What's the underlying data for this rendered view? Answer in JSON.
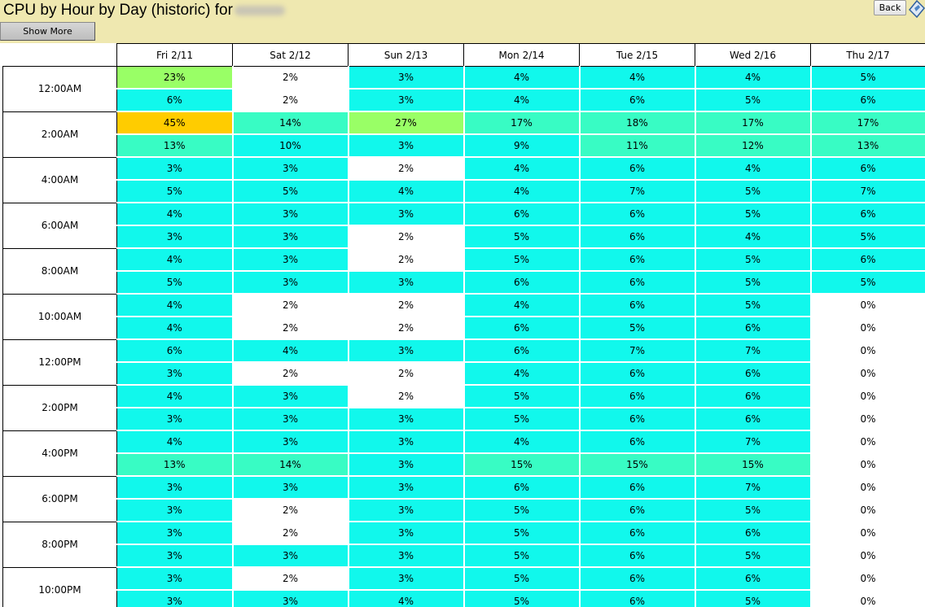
{
  "header": {
    "title": "CPU by Hour by Day (historic) for",
    "show_more_label": "Show More",
    "back_label": "Back"
  },
  "colors": {
    "background": "#efe8b0",
    "level_0_white": "#ffffff",
    "level_1_cyan": "#11f8ec",
    "level_2_aqua": "#38fcc4",
    "level_3_green": "#99ff66",
    "level_4_orange": "#ffcc00"
  },
  "table": {
    "columns": [
      "Fri 2/11",
      "Sat 2/12",
      "Sun 2/13",
      "Mon 2/14",
      "Tue 2/15",
      "Wed 2/16",
      "Thu 2/17"
    ],
    "groups": [
      {
        "hour": "12:00AM",
        "rows": [
          [
            {
              "v": "23%",
              "l": 3
            },
            {
              "v": "2%",
              "l": 0
            },
            {
              "v": "3%",
              "l": 1
            },
            {
              "v": "4%",
              "l": 1
            },
            {
              "v": "4%",
              "l": 1
            },
            {
              "v": "4%",
              "l": 1
            },
            {
              "v": "5%",
              "l": 1
            }
          ],
          [
            {
              "v": "6%",
              "l": 1
            },
            {
              "v": "2%",
              "l": 0
            },
            {
              "v": "3%",
              "l": 1
            },
            {
              "v": "4%",
              "l": 1
            },
            {
              "v": "6%",
              "l": 1
            },
            {
              "v": "5%",
              "l": 1
            },
            {
              "v": "6%",
              "l": 1
            }
          ]
        ]
      },
      {
        "hour": "2:00AM",
        "rows": [
          [
            {
              "v": "45%",
              "l": 4
            },
            {
              "v": "14%",
              "l": 2
            },
            {
              "v": "27%",
              "l": 3
            },
            {
              "v": "17%",
              "l": 2
            },
            {
              "v": "18%",
              "l": 2
            },
            {
              "v": "17%",
              "l": 2
            },
            {
              "v": "17%",
              "l": 2
            }
          ],
          [
            {
              "v": "13%",
              "l": 2
            },
            {
              "v": "10%",
              "l": 1
            },
            {
              "v": "3%",
              "l": 1
            },
            {
              "v": "9%",
              "l": 1
            },
            {
              "v": "11%",
              "l": 2
            },
            {
              "v": "12%",
              "l": 2
            },
            {
              "v": "13%",
              "l": 2
            }
          ]
        ]
      },
      {
        "hour": "4:00AM",
        "rows": [
          [
            {
              "v": "3%",
              "l": 1
            },
            {
              "v": "3%",
              "l": 1
            },
            {
              "v": "2%",
              "l": 0
            },
            {
              "v": "4%",
              "l": 1
            },
            {
              "v": "6%",
              "l": 1
            },
            {
              "v": "4%",
              "l": 1
            },
            {
              "v": "6%",
              "l": 1
            }
          ],
          [
            {
              "v": "5%",
              "l": 1
            },
            {
              "v": "5%",
              "l": 1
            },
            {
              "v": "4%",
              "l": 1
            },
            {
              "v": "4%",
              "l": 1
            },
            {
              "v": "7%",
              "l": 1
            },
            {
              "v": "5%",
              "l": 1
            },
            {
              "v": "7%",
              "l": 1
            }
          ]
        ]
      },
      {
        "hour": "6:00AM",
        "rows": [
          [
            {
              "v": "4%",
              "l": 1
            },
            {
              "v": "3%",
              "l": 1
            },
            {
              "v": "3%",
              "l": 1
            },
            {
              "v": "6%",
              "l": 1
            },
            {
              "v": "6%",
              "l": 1
            },
            {
              "v": "5%",
              "l": 1
            },
            {
              "v": "6%",
              "l": 1
            }
          ],
          [
            {
              "v": "3%",
              "l": 1
            },
            {
              "v": "3%",
              "l": 1
            },
            {
              "v": "2%",
              "l": 0
            },
            {
              "v": "5%",
              "l": 1
            },
            {
              "v": "6%",
              "l": 1
            },
            {
              "v": "4%",
              "l": 1
            },
            {
              "v": "5%",
              "l": 1
            }
          ]
        ]
      },
      {
        "hour": "8:00AM",
        "rows": [
          [
            {
              "v": "4%",
              "l": 1
            },
            {
              "v": "3%",
              "l": 1
            },
            {
              "v": "2%",
              "l": 0
            },
            {
              "v": "5%",
              "l": 1
            },
            {
              "v": "6%",
              "l": 1
            },
            {
              "v": "5%",
              "l": 1
            },
            {
              "v": "6%",
              "l": 1
            }
          ],
          [
            {
              "v": "5%",
              "l": 1
            },
            {
              "v": "3%",
              "l": 1
            },
            {
              "v": "3%",
              "l": 1
            },
            {
              "v": "6%",
              "l": 1
            },
            {
              "v": "6%",
              "l": 1
            },
            {
              "v": "5%",
              "l": 1
            },
            {
              "v": "5%",
              "l": 1
            }
          ]
        ]
      },
      {
        "hour": "10:00AM",
        "rows": [
          [
            {
              "v": "4%",
              "l": 1
            },
            {
              "v": "2%",
              "l": 0
            },
            {
              "v": "2%",
              "l": 0
            },
            {
              "v": "4%",
              "l": 1
            },
            {
              "v": "6%",
              "l": 1
            },
            {
              "v": "5%",
              "l": 1
            },
            {
              "v": "0%",
              "l": 0
            }
          ],
          [
            {
              "v": "4%",
              "l": 1
            },
            {
              "v": "2%",
              "l": 0
            },
            {
              "v": "2%",
              "l": 0
            },
            {
              "v": "6%",
              "l": 1
            },
            {
              "v": "5%",
              "l": 1
            },
            {
              "v": "6%",
              "l": 1
            },
            {
              "v": "0%",
              "l": 0
            }
          ]
        ]
      },
      {
        "hour": "12:00PM",
        "rows": [
          [
            {
              "v": "6%",
              "l": 1
            },
            {
              "v": "4%",
              "l": 1
            },
            {
              "v": "3%",
              "l": 1
            },
            {
              "v": "6%",
              "l": 1
            },
            {
              "v": "7%",
              "l": 1
            },
            {
              "v": "7%",
              "l": 1
            },
            {
              "v": "0%",
              "l": 0
            }
          ],
          [
            {
              "v": "3%",
              "l": 1
            },
            {
              "v": "2%",
              "l": 0
            },
            {
              "v": "2%",
              "l": 0
            },
            {
              "v": "4%",
              "l": 1
            },
            {
              "v": "6%",
              "l": 1
            },
            {
              "v": "6%",
              "l": 1
            },
            {
              "v": "0%",
              "l": 0
            }
          ]
        ]
      },
      {
        "hour": "2:00PM",
        "rows": [
          [
            {
              "v": "4%",
              "l": 1
            },
            {
              "v": "3%",
              "l": 1
            },
            {
              "v": "2%",
              "l": 0
            },
            {
              "v": "5%",
              "l": 1
            },
            {
              "v": "6%",
              "l": 1
            },
            {
              "v": "6%",
              "l": 1
            },
            {
              "v": "0%",
              "l": 0
            }
          ],
          [
            {
              "v": "3%",
              "l": 1
            },
            {
              "v": "3%",
              "l": 1
            },
            {
              "v": "3%",
              "l": 1
            },
            {
              "v": "5%",
              "l": 1
            },
            {
              "v": "6%",
              "l": 1
            },
            {
              "v": "6%",
              "l": 1
            },
            {
              "v": "0%",
              "l": 0
            }
          ]
        ]
      },
      {
        "hour": "4:00PM",
        "rows": [
          [
            {
              "v": "4%",
              "l": 1
            },
            {
              "v": "3%",
              "l": 1
            },
            {
              "v": "3%",
              "l": 1
            },
            {
              "v": "4%",
              "l": 1
            },
            {
              "v": "6%",
              "l": 1
            },
            {
              "v": "7%",
              "l": 1
            },
            {
              "v": "0%",
              "l": 0
            }
          ],
          [
            {
              "v": "13%",
              "l": 2
            },
            {
              "v": "14%",
              "l": 2
            },
            {
              "v": "3%",
              "l": 1
            },
            {
              "v": "15%",
              "l": 2
            },
            {
              "v": "15%",
              "l": 2
            },
            {
              "v": "15%",
              "l": 2
            },
            {
              "v": "0%",
              "l": 0
            }
          ]
        ]
      },
      {
        "hour": "6:00PM",
        "rows": [
          [
            {
              "v": "3%",
              "l": 1
            },
            {
              "v": "3%",
              "l": 1
            },
            {
              "v": "3%",
              "l": 1
            },
            {
              "v": "6%",
              "l": 1
            },
            {
              "v": "6%",
              "l": 1
            },
            {
              "v": "7%",
              "l": 1
            },
            {
              "v": "0%",
              "l": 0
            }
          ],
          [
            {
              "v": "3%",
              "l": 1
            },
            {
              "v": "2%",
              "l": 0
            },
            {
              "v": "3%",
              "l": 1
            },
            {
              "v": "5%",
              "l": 1
            },
            {
              "v": "6%",
              "l": 1
            },
            {
              "v": "5%",
              "l": 1
            },
            {
              "v": "0%",
              "l": 0
            }
          ]
        ]
      },
      {
        "hour": "8:00PM",
        "rows": [
          [
            {
              "v": "3%",
              "l": 1
            },
            {
              "v": "2%",
              "l": 0
            },
            {
              "v": "3%",
              "l": 1
            },
            {
              "v": "5%",
              "l": 1
            },
            {
              "v": "6%",
              "l": 1
            },
            {
              "v": "6%",
              "l": 1
            },
            {
              "v": "0%",
              "l": 0
            }
          ],
          [
            {
              "v": "3%",
              "l": 1
            },
            {
              "v": "3%",
              "l": 1
            },
            {
              "v": "3%",
              "l": 1
            },
            {
              "v": "5%",
              "l": 1
            },
            {
              "v": "6%",
              "l": 1
            },
            {
              "v": "5%",
              "l": 1
            },
            {
              "v": "0%",
              "l": 0
            }
          ]
        ]
      },
      {
        "hour": "10:00PM",
        "rows": [
          [
            {
              "v": "3%",
              "l": 1
            },
            {
              "v": "2%",
              "l": 0
            },
            {
              "v": "3%",
              "l": 1
            },
            {
              "v": "5%",
              "l": 1
            },
            {
              "v": "6%",
              "l": 1
            },
            {
              "v": "6%",
              "l": 1
            },
            {
              "v": "0%",
              "l": 0
            }
          ],
          [
            {
              "v": "3%",
              "l": 1
            },
            {
              "v": "3%",
              "l": 1
            },
            {
              "v": "4%",
              "l": 1
            },
            {
              "v": "5%",
              "l": 1
            },
            {
              "v": "6%",
              "l": 1
            },
            {
              "v": "5%",
              "l": 1
            },
            {
              "v": "0%",
              "l": 0
            }
          ]
        ]
      }
    ]
  }
}
